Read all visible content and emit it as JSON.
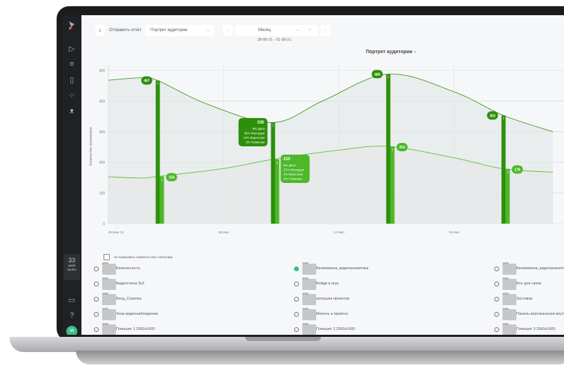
{
  "toolbar": {
    "send_report": "Отправить отчёт",
    "report_select": "Портрет аудитории",
    "period": "Месяц",
    "date_range": "28-06-21 - 01-08-21",
    "minus": "—",
    "plus": "+"
  },
  "sidebar": {
    "trial_days": "33",
    "trial_label1": "дней",
    "trial_label2": "пробы",
    "avatar": "VI",
    "icons": [
      "logo",
      "play-icon",
      "filter-icon",
      "file-icon",
      "loader-icon",
      "user-icon",
      "monitor-icon",
      "help-icon"
    ]
  },
  "colors": {
    "dark_green": "#2e8f0b",
    "light_green": "#4cb82a",
    "sidebar": "#1f2124",
    "accent_teal": "#30c07e"
  },
  "chart_data": {
    "type": "line",
    "title": "Портрет аудитории",
    "ylabel": "Количество просмотров",
    "ylim": [
      0,
      500
    ],
    "yticks": [
      "0",
      "100",
      "200",
      "300",
      "400",
      "500"
    ],
    "xticks": [
      "28 Июн '21",
      "05 Июл",
      "12 Июл",
      "19 Июл"
    ],
    "grid": true,
    "series": [
      {
        "x": [
          "2021-06-28",
          "2021-06-30",
          "2021-07-01",
          "2021-07-04",
          "2021-07-08",
          "2021-07-11",
          "2021-07-15",
          "2021-07-19",
          "2021-07-22",
          "2021-07-25"
        ],
        "values": [
          468,
          476,
          467,
          390,
          330,
          400,
          488,
          430,
          353,
          300
        ]
      },
      {
        "x": [
          "2021-06-28",
          "2021-06-30",
          "2021-07-01",
          "2021-07-05",
          "2021-07-08",
          "2021-07-12",
          "2021-07-15",
          "2021-07-19",
          "2021-07-22",
          "2021-07-25"
        ],
        "values": [
          153,
          149,
          154,
          180,
          210,
          240,
          252,
          215,
          179,
          168
        ]
      }
    ],
    "bars": [
      {
        "date": "2021-07-01",
        "upper": 467,
        "lower": 154
      },
      {
        "date": "2021-07-08",
        "upper": 330,
        "lower": 210
      },
      {
        "date": "2021-07-15",
        "upper": 488,
        "lower": 252
      },
      {
        "date": "2021-07-22",
        "upper": 353,
        "lower": 179
      }
    ],
    "labels": [
      "467",
      "154",
      "330",
      "210",
      "488",
      "252",
      "353",
      "179"
    ],
    "tooltips": [
      {
        "value": "330",
        "lines": [
          "8% Дети",
          "36% Молодые",
          "12% Взрослые",
          "3% Пожилые"
        ]
      },
      {
        "value": "210",
        "lines": [
          "9% Дети",
          "27% Молодые",
          "2% Взрослые",
          "2% Пожилые"
        ]
      }
    ]
  },
  "filter": {
    "hide_empty_label": "Не показывать элементы без статистики",
    "hide_empty_checked": false
  },
  "items": [
    {
      "label": "Безопасность",
      "selected": false
    },
    {
      "label": "Велкомзона_видеоаналитика",
      "selected": true
    },
    {
      "label": "Велкомзона_видеоаналитика",
      "selected": false
    },
    {
      "label": "Видеостена 3х3",
      "selected": false
    },
    {
      "label": "Войди в игру",
      "selected": false
    },
    {
      "label": "Все для связи",
      "selected": false
    },
    {
      "label": "Вход_Стрелка",
      "selected": false
    },
    {
      "label": "заглушка проектор",
      "selected": false
    },
    {
      "label": "Заставка",
      "selected": false
    },
    {
      "label": "Зона видеонаблюдения",
      "selected": false
    },
    {
      "label": "Мелочь а приятно",
      "selected": false
    },
    {
      "label": "Панель вертикальная внутр",
      "selected": false
    },
    {
      "label": "Планшет 1 2560х1600",
      "selected": false
    },
    {
      "label": "Планшет 2 2560х1600",
      "selected": false
    },
    {
      "label": "Планшет 3 2560х1600",
      "selected": false
    }
  ]
}
